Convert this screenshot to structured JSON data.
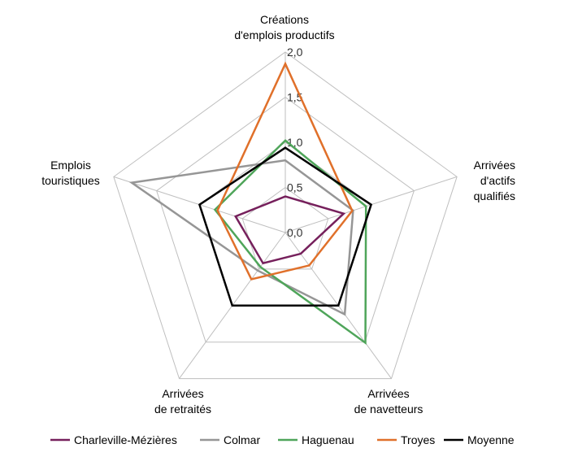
{
  "chart_data": {
    "type": "radar",
    "axes": [
      [
        "Créations",
        "d'emplois productifs"
      ],
      [
        "Arrivées",
        "d'actifs",
        "qualifiés"
      ],
      [
        "Arrivées",
        "de navetteurs"
      ],
      [
        "Arrivées",
        "de retraités"
      ],
      [
        "Emplois",
        "touristiques"
      ]
    ],
    "rlim": [
      0,
      2
    ],
    "ticks": [
      "0,0",
      "0,5",
      "1,0",
      "1,5",
      "2,0"
    ],
    "tick_values": [
      0,
      0.5,
      1,
      1.5,
      2
    ],
    "legend_position": "bottom",
    "series": [
      {
        "name": "Charleville-Mézières",
        "color": "#76205c",
        "values": [
          0.4,
          0.68,
          0.29,
          0.42,
          0.58
        ]
      },
      {
        "name": "Colmar",
        "color": "#969696",
        "values": [
          0.8,
          0.79,
          1.12,
          0.52,
          1.79
        ]
      },
      {
        "name": "Haguenau",
        "color": "#4fa55a",
        "values": [
          1.02,
          0.94,
          1.51,
          0.47,
          0.82
        ]
      },
      {
        "name": "Troyes",
        "color": "#e0702a",
        "values": [
          1.87,
          0.78,
          0.45,
          0.64,
          0.79
        ]
      },
      {
        "name": "Moyenne",
        "color": "#000000",
        "values": [
          0.94,
          1.0,
          1.0,
          1.0,
          1.0
        ]
      }
    ]
  }
}
